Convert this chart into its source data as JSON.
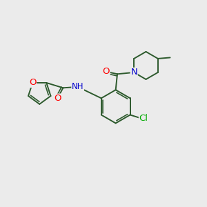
{
  "bg_color": "#ebebeb",
  "bond_color": "#2d5a2d",
  "bond_width": 1.4,
  "atom_colors": {
    "O": "#ff0000",
    "N": "#0000cc",
    "Cl": "#00aa00",
    "C": "#2d5a2d"
  },
  "font_size": 8.5,
  "figsize": [
    3.0,
    3.0
  ],
  "dpi": 100
}
